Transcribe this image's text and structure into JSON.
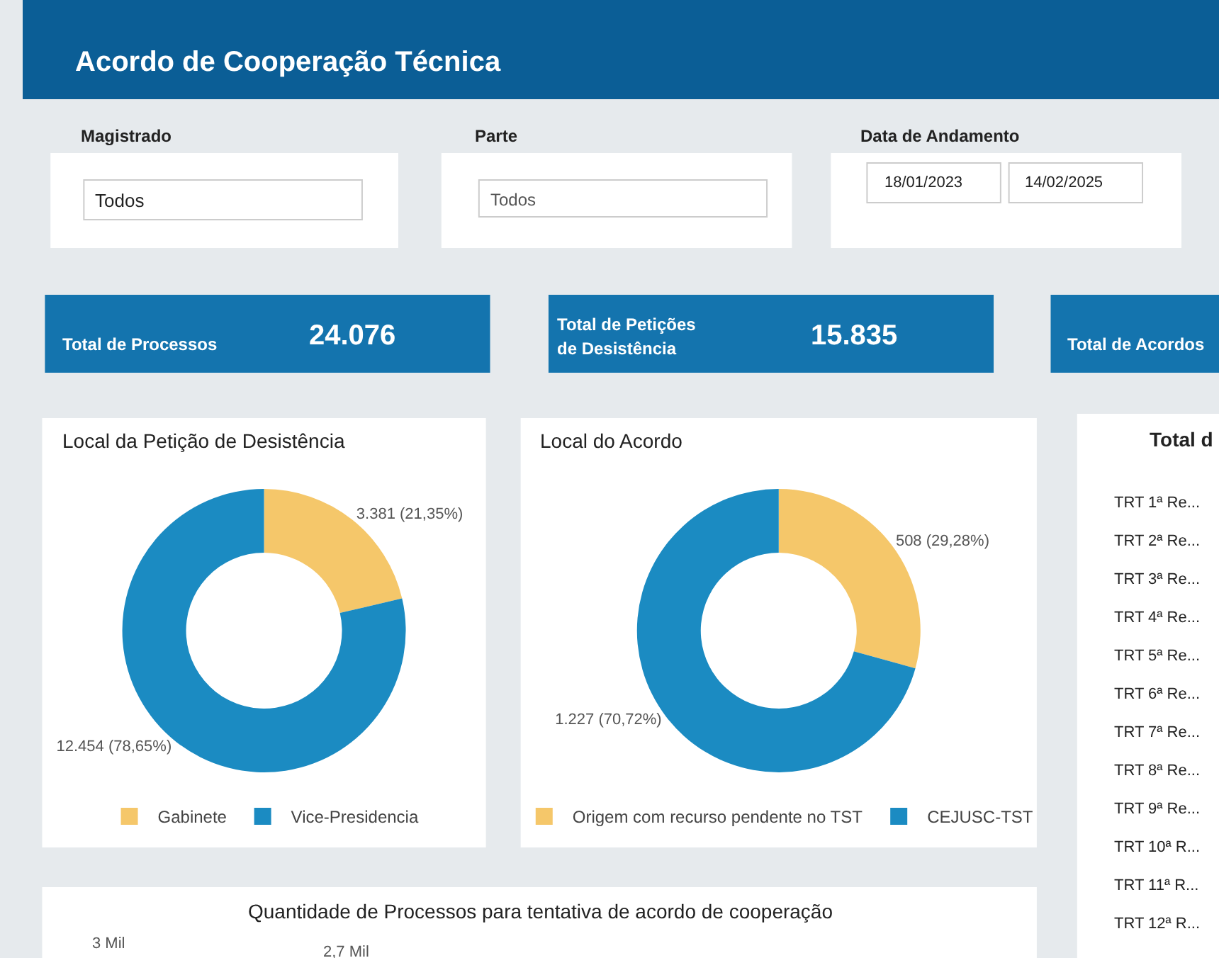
{
  "chart_data": [
    {
      "type": "other",
      "title": "Acordo de Cooperação Técnica",
      "annotations": [
        "Magistrado",
        "Todos",
        "Parte",
        "Todos",
        "Data de Andamento",
        "18/01/2023",
        "14/02/2025",
        "Total de Processos",
        "24.076",
        "Total de Petições",
        "de Desistência",
        "15.835",
        "Total de Acordos"
      ]
    },
    {
      "type": "donut",
      "title": "Local da Petição de Desistência",
      "categories": [
        "Gabinete",
        "Vice-Presidencia"
      ],
      "values": [
        3381,
        12454
      ],
      "colors": [
        "#f5c76a",
        "#1b8bc2"
      ],
      "value_labels": [
        "3.381 (21,35%)",
        "12.454 (78,65%)"
      ],
      "legend": "bottom"
    },
    {
      "type": "donut",
      "title": "Local do Acordo",
      "categories": [
        "Origem com recurso pendente no TST",
        "CEJUSC-TST"
      ],
      "values": [
        508,
        1227
      ],
      "colors": [
        "#f5c76a",
        "#1b8bc2"
      ],
      "value_labels": [
        "508 (29,28%)",
        "1.227 (70,72%)"
      ],
      "legend": "bottom"
    },
    {
      "type": "other",
      "title": "Total d",
      "annotations": [
        "TRT 1ª Re...",
        "TRT 2ª Re...",
        "TRT 3ª Re...",
        "TRT 4ª Re...",
        "TRT 5ª Re...",
        "TRT 6ª Re...",
        "TRT 7ª Re...",
        "TRT 8ª Re...",
        "TRT 9ª Re...",
        "TRT 10ª R...",
        "TRT 11ª R...",
        "TRT 12ª R..."
      ]
    },
    {
      "type": "other",
      "title": "Quantidade de Processos para tentativa de acordo de cooperação",
      "annotations": [
        "3 Mil",
        "2,7 Mil"
      ]
    }
  ]
}
